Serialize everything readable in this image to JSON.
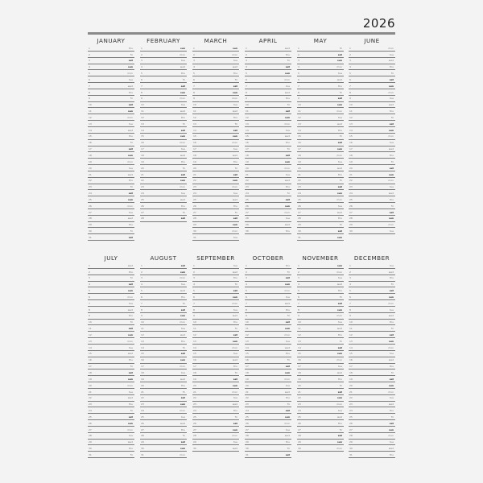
{
  "year": "2026",
  "months": [
    {
      "name": "JANUARY",
      "days": [
        [
          "1",
          "thu"
        ],
        [
          "2",
          "fri"
        ],
        [
          "3",
          "sat"
        ],
        [
          "4",
          "sun"
        ],
        [
          "5",
          "mon"
        ],
        [
          "6",
          "tue"
        ],
        [
          "7",
          "wed"
        ],
        [
          "8",
          "thu"
        ],
        [
          "9",
          "fri"
        ],
        [
          "10",
          "sat"
        ],
        [
          "11",
          "sun"
        ],
        [
          "12",
          "mon"
        ],
        [
          "13",
          "tue"
        ],
        [
          "14",
          "wed"
        ],
        [
          "15",
          "thu"
        ],
        [
          "16",
          "fri"
        ],
        [
          "17",
          "sat"
        ],
        [
          "18",
          "sun"
        ],
        [
          "19",
          "mon"
        ],
        [
          "20",
          "tue"
        ],
        [
          "21",
          "wed"
        ],
        [
          "22",
          "thu"
        ],
        [
          "23",
          "fri"
        ],
        [
          "24",
          "sat"
        ],
        [
          "25",
          "sun"
        ],
        [
          "26",
          "mon"
        ],
        [
          "27",
          "tue"
        ],
        [
          "28",
          "wed"
        ],
        [
          "29",
          "thu"
        ],
        [
          "30",
          "fri"
        ],
        [
          "31",
          "sat"
        ]
      ]
    },
    {
      "name": "FEBRUARY",
      "days": [
        [
          "1",
          "sun"
        ],
        [
          "2",
          "mon"
        ],
        [
          "3",
          "tue"
        ],
        [
          "4",
          "wed"
        ],
        [
          "5",
          "thu"
        ],
        [
          "6",
          "fri"
        ],
        [
          "7",
          "sat"
        ],
        [
          "8",
          "sun"
        ],
        [
          "9",
          "mon"
        ],
        [
          "10",
          "tue"
        ],
        [
          "11",
          "wed"
        ],
        [
          "12",
          "thu"
        ],
        [
          "13",
          "fri"
        ],
        [
          "14",
          "sat"
        ],
        [
          "15",
          "sun"
        ],
        [
          "16",
          "mon"
        ],
        [
          "17",
          "tue"
        ],
        [
          "18",
          "wed"
        ],
        [
          "19",
          "thu"
        ],
        [
          "20",
          "fri"
        ],
        [
          "21",
          "sat"
        ],
        [
          "22",
          "sun"
        ],
        [
          "23",
          "mon"
        ],
        [
          "24",
          "tue"
        ],
        [
          "25",
          "wed"
        ],
        [
          "26",
          "thu"
        ],
        [
          "27",
          "fri"
        ],
        [
          "28",
          "sat"
        ]
      ]
    },
    {
      "name": "MARCH",
      "days": [
        [
          "1",
          "sun"
        ],
        [
          "2",
          "mon"
        ],
        [
          "3",
          "tue"
        ],
        [
          "4",
          "wed"
        ],
        [
          "5",
          "thu"
        ],
        [
          "6",
          "fri"
        ],
        [
          "7",
          "sat"
        ],
        [
          "8",
          "sun"
        ],
        [
          "9",
          "mon"
        ],
        [
          "10",
          "tue"
        ],
        [
          "11",
          "wed"
        ],
        [
          "12",
          "thu"
        ],
        [
          "13",
          "fri"
        ],
        [
          "14",
          "sat"
        ],
        [
          "15",
          "sun"
        ],
        [
          "16",
          "mon"
        ],
        [
          "17",
          "tue"
        ],
        [
          "18",
          "wed"
        ],
        [
          "19",
          "thu"
        ],
        [
          "20",
          "fri"
        ],
        [
          "21",
          "sat"
        ],
        [
          "22",
          "sun"
        ],
        [
          "23",
          "mon"
        ],
        [
          "24",
          "tue"
        ],
        [
          "25",
          "wed"
        ],
        [
          "26",
          "thu"
        ],
        [
          "27",
          "fri"
        ],
        [
          "28",
          "sat"
        ],
        [
          "29",
          "sun"
        ],
        [
          "30",
          "mon"
        ],
        [
          "31",
          "tue"
        ]
      ]
    },
    {
      "name": "APRIL",
      "days": [
        [
          "1",
          "wed"
        ],
        [
          "2",
          "thu"
        ],
        [
          "3",
          "fri"
        ],
        [
          "4",
          "sat"
        ],
        [
          "5",
          "sun"
        ],
        [
          "6",
          "mon"
        ],
        [
          "7",
          "tue"
        ],
        [
          "8",
          "wed"
        ],
        [
          "9",
          "thu"
        ],
        [
          "10",
          "fri"
        ],
        [
          "11",
          "sat"
        ],
        [
          "12",
          "sun"
        ],
        [
          "13",
          "mon"
        ],
        [
          "14",
          "tue"
        ],
        [
          "15",
          "wed"
        ],
        [
          "16",
          "thu"
        ],
        [
          "17",
          "fri"
        ],
        [
          "18",
          "sat"
        ],
        [
          "19",
          "sun"
        ],
        [
          "20",
          "mon"
        ],
        [
          "21",
          "tue"
        ],
        [
          "22",
          "wed"
        ],
        [
          "23",
          "thu"
        ],
        [
          "24",
          "fri"
        ],
        [
          "25",
          "sat"
        ],
        [
          "26",
          "sun"
        ],
        [
          "27",
          "mon"
        ],
        [
          "28",
          "tue"
        ],
        [
          "29",
          "wed"
        ],
        [
          "30",
          "thu"
        ]
      ]
    },
    {
      "name": "MAY",
      "days": [
        [
          "1",
          "fri"
        ],
        [
          "2",
          "sat"
        ],
        [
          "3",
          "sun"
        ],
        [
          "4",
          "mon"
        ],
        [
          "5",
          "tue"
        ],
        [
          "6",
          "wed"
        ],
        [
          "7",
          "thu"
        ],
        [
          "8",
          "fri"
        ],
        [
          "9",
          "sat"
        ],
        [
          "10",
          "sun"
        ],
        [
          "11",
          "mon"
        ],
        [
          "12",
          "tue"
        ],
        [
          "13",
          "wed"
        ],
        [
          "14",
          "thu"
        ],
        [
          "15",
          "fri"
        ],
        [
          "16",
          "sat"
        ],
        [
          "17",
          "sun"
        ],
        [
          "18",
          "mon"
        ],
        [
          "19",
          "tue"
        ],
        [
          "20",
          "wed"
        ],
        [
          "21",
          "thu"
        ],
        [
          "22",
          "fri"
        ],
        [
          "23",
          "sat"
        ],
        [
          "24",
          "sun"
        ],
        [
          "25",
          "mon"
        ],
        [
          "26",
          "tue"
        ],
        [
          "27",
          "wed"
        ],
        [
          "28",
          "thu"
        ],
        [
          "29",
          "fri"
        ],
        [
          "30",
          "sat"
        ],
        [
          "31",
          "sun"
        ]
      ]
    },
    {
      "name": "JUNE",
      "days": [
        [
          "1",
          "mon"
        ],
        [
          "2",
          "tue"
        ],
        [
          "3",
          "wed"
        ],
        [
          "4",
          "thu"
        ],
        [
          "5",
          "fri"
        ],
        [
          "6",
          "sat"
        ],
        [
          "7",
          "sun"
        ],
        [
          "8",
          "mon"
        ],
        [
          "9",
          "tue"
        ],
        [
          "10",
          "wed"
        ],
        [
          "11",
          "thu"
        ],
        [
          "12",
          "fri"
        ],
        [
          "13",
          "sat"
        ],
        [
          "14",
          "sun"
        ],
        [
          "15",
          "mon"
        ],
        [
          "16",
          "tue"
        ],
        [
          "17",
          "wed"
        ],
        [
          "18",
          "thu"
        ],
        [
          "19",
          "fri"
        ],
        [
          "20",
          "sat"
        ],
        [
          "21",
          "sun"
        ],
        [
          "22",
          "mon"
        ],
        [
          "23",
          "tue"
        ],
        [
          "24",
          "wed"
        ],
        [
          "25",
          "thu"
        ],
        [
          "26",
          "fri"
        ],
        [
          "27",
          "sat"
        ],
        [
          "28",
          "sun"
        ],
        [
          "29",
          "mon"
        ],
        [
          "30",
          "tue"
        ]
      ]
    },
    {
      "name": "JULY",
      "days": [
        [
          "1",
          "wed"
        ],
        [
          "2",
          "thu"
        ],
        [
          "3",
          "fri"
        ],
        [
          "4",
          "sat"
        ],
        [
          "5",
          "sun"
        ],
        [
          "6",
          "mon"
        ],
        [
          "7",
          "tue"
        ],
        [
          "8",
          "wed"
        ],
        [
          "9",
          "thu"
        ],
        [
          "10",
          "fri"
        ],
        [
          "11",
          "sat"
        ],
        [
          "12",
          "sun"
        ],
        [
          "13",
          "mon"
        ],
        [
          "14",
          "tue"
        ],
        [
          "15",
          "wed"
        ],
        [
          "16",
          "thu"
        ],
        [
          "17",
          "fri"
        ],
        [
          "18",
          "sat"
        ],
        [
          "19",
          "sun"
        ],
        [
          "20",
          "mon"
        ],
        [
          "21",
          "tue"
        ],
        [
          "22",
          "wed"
        ],
        [
          "23",
          "thu"
        ],
        [
          "24",
          "fri"
        ],
        [
          "25",
          "sat"
        ],
        [
          "26",
          "sun"
        ],
        [
          "27",
          "mon"
        ],
        [
          "28",
          "tue"
        ],
        [
          "29",
          "wed"
        ],
        [
          "30",
          "thu"
        ],
        [
          "31",
          "fri"
        ]
      ]
    },
    {
      "name": "AUGUST",
      "days": [
        [
          "1",
          "sat"
        ],
        [
          "2",
          "sun"
        ],
        [
          "3",
          "mon"
        ],
        [
          "4",
          "tue"
        ],
        [
          "5",
          "wed"
        ],
        [
          "6",
          "thu"
        ],
        [
          "7",
          "fri"
        ],
        [
          "8",
          "sat"
        ],
        [
          "9",
          "sun"
        ],
        [
          "10",
          "mon"
        ],
        [
          "11",
          "tue"
        ],
        [
          "12",
          "wed"
        ],
        [
          "13",
          "thu"
        ],
        [
          "14",
          "fri"
        ],
        [
          "15",
          "sat"
        ],
        [
          "16",
          "sun"
        ],
        [
          "17",
          "mon"
        ],
        [
          "18",
          "tue"
        ],
        [
          "19",
          "wed"
        ],
        [
          "20",
          "thu"
        ],
        [
          "21",
          "fri"
        ],
        [
          "22",
          "sat"
        ],
        [
          "23",
          "sun"
        ],
        [
          "24",
          "mon"
        ],
        [
          "25",
          "tue"
        ],
        [
          "26",
          "wed"
        ],
        [
          "27",
          "thu"
        ],
        [
          "28",
          "fri"
        ],
        [
          "29",
          "sat"
        ],
        [
          "30",
          "sun"
        ],
        [
          "31",
          "mon"
        ]
      ]
    },
    {
      "name": "SEPTEMBER",
      "days": [
        [
          "1",
          "tue"
        ],
        [
          "2",
          "wed"
        ],
        [
          "3",
          "thu"
        ],
        [
          "4",
          "fri"
        ],
        [
          "5",
          "sat"
        ],
        [
          "6",
          "sun"
        ],
        [
          "7",
          "mon"
        ],
        [
          "8",
          "tue"
        ],
        [
          "9",
          "wed"
        ],
        [
          "10",
          "thu"
        ],
        [
          "11",
          "fri"
        ],
        [
          "12",
          "sat"
        ],
        [
          "13",
          "sun"
        ],
        [
          "14",
          "mon"
        ],
        [
          "15",
          "tue"
        ],
        [
          "16",
          "wed"
        ],
        [
          "17",
          "thu"
        ],
        [
          "18",
          "fri"
        ],
        [
          "19",
          "sat"
        ],
        [
          "20",
          "sun"
        ],
        [
          "21",
          "mon"
        ],
        [
          "22",
          "tue"
        ],
        [
          "23",
          "wed"
        ],
        [
          "24",
          "thu"
        ],
        [
          "25",
          "fri"
        ],
        [
          "26",
          "sat"
        ],
        [
          "27",
          "sun"
        ],
        [
          "28",
          "mon"
        ],
        [
          "29",
          "tue"
        ],
        [
          "30",
          "wed"
        ]
      ]
    },
    {
      "name": "OCTOBER",
      "days": [
        [
          "1",
          "thu"
        ],
        [
          "2",
          "fri"
        ],
        [
          "3",
          "sat"
        ],
        [
          "4",
          "sun"
        ],
        [
          "5",
          "mon"
        ],
        [
          "6",
          "tue"
        ],
        [
          "7",
          "wed"
        ],
        [
          "8",
          "thu"
        ],
        [
          "9",
          "fri"
        ],
        [
          "10",
          "sat"
        ],
        [
          "11",
          "sun"
        ],
        [
          "12",
          "mon"
        ],
        [
          "13",
          "tue"
        ],
        [
          "14",
          "wed"
        ],
        [
          "15",
          "thu"
        ],
        [
          "16",
          "fri"
        ],
        [
          "17",
          "sat"
        ],
        [
          "18",
          "sun"
        ],
        [
          "19",
          "mon"
        ],
        [
          "20",
          "tue"
        ],
        [
          "21",
          "wed"
        ],
        [
          "22",
          "thu"
        ],
        [
          "23",
          "fri"
        ],
        [
          "24",
          "sat"
        ],
        [
          "25",
          "sun"
        ],
        [
          "26",
          "mon"
        ],
        [
          "27",
          "tue"
        ],
        [
          "28",
          "wed"
        ],
        [
          "29",
          "thu"
        ],
        [
          "30",
          "fri"
        ],
        [
          "31",
          "sat"
        ]
      ]
    },
    {
      "name": "NOVEMBER",
      "days": [
        [
          "1",
          "sun"
        ],
        [
          "2",
          "mon"
        ],
        [
          "3",
          "tue"
        ],
        [
          "4",
          "wed"
        ],
        [
          "5",
          "thu"
        ],
        [
          "6",
          "fri"
        ],
        [
          "7",
          "sat"
        ],
        [
          "8",
          "sun"
        ],
        [
          "9",
          "mon"
        ],
        [
          "10",
          "tue"
        ],
        [
          "11",
          "wed"
        ],
        [
          "12",
          "thu"
        ],
        [
          "13",
          "fri"
        ],
        [
          "14",
          "sat"
        ],
        [
          "15",
          "sun"
        ],
        [
          "16",
          "mon"
        ],
        [
          "17",
          "tue"
        ],
        [
          "18",
          "wed"
        ],
        [
          "19",
          "thu"
        ],
        [
          "20",
          "fri"
        ],
        [
          "21",
          "sat"
        ],
        [
          "22",
          "sun"
        ],
        [
          "23",
          "mon"
        ],
        [
          "24",
          "tue"
        ],
        [
          "25",
          "wed"
        ],
        [
          "26",
          "thu"
        ],
        [
          "27",
          "fri"
        ],
        [
          "28",
          "sat"
        ],
        [
          "29",
          "sun"
        ],
        [
          "30",
          "mon"
        ]
      ]
    },
    {
      "name": "DECEMBER",
      "days": [
        [
          "1",
          "tue"
        ],
        [
          "2",
          "wed"
        ],
        [
          "3",
          "thu"
        ],
        [
          "4",
          "fri"
        ],
        [
          "5",
          "sat"
        ],
        [
          "6",
          "sun"
        ],
        [
          "7",
          "mon"
        ],
        [
          "8",
          "tue"
        ],
        [
          "9",
          "wed"
        ],
        [
          "10",
          "thu"
        ],
        [
          "11",
          "fri"
        ],
        [
          "12",
          "sat"
        ],
        [
          "13",
          "sun"
        ],
        [
          "14",
          "mon"
        ],
        [
          "15",
          "tue"
        ],
        [
          "16",
          "wed"
        ],
        [
          "17",
          "thu"
        ],
        [
          "18",
          "fri"
        ],
        [
          "19",
          "sat"
        ],
        [
          "20",
          "sun"
        ],
        [
          "21",
          "mon"
        ],
        [
          "22",
          "tue"
        ],
        [
          "23",
          "wed"
        ],
        [
          "24",
          "thu"
        ],
        [
          "25",
          "fri"
        ],
        [
          "26",
          "sat"
        ],
        [
          "27",
          "sun"
        ],
        [
          "28",
          "mon"
        ],
        [
          "29",
          "tue"
        ],
        [
          "30",
          "wed"
        ],
        [
          "31",
          "thu"
        ]
      ]
    }
  ]
}
